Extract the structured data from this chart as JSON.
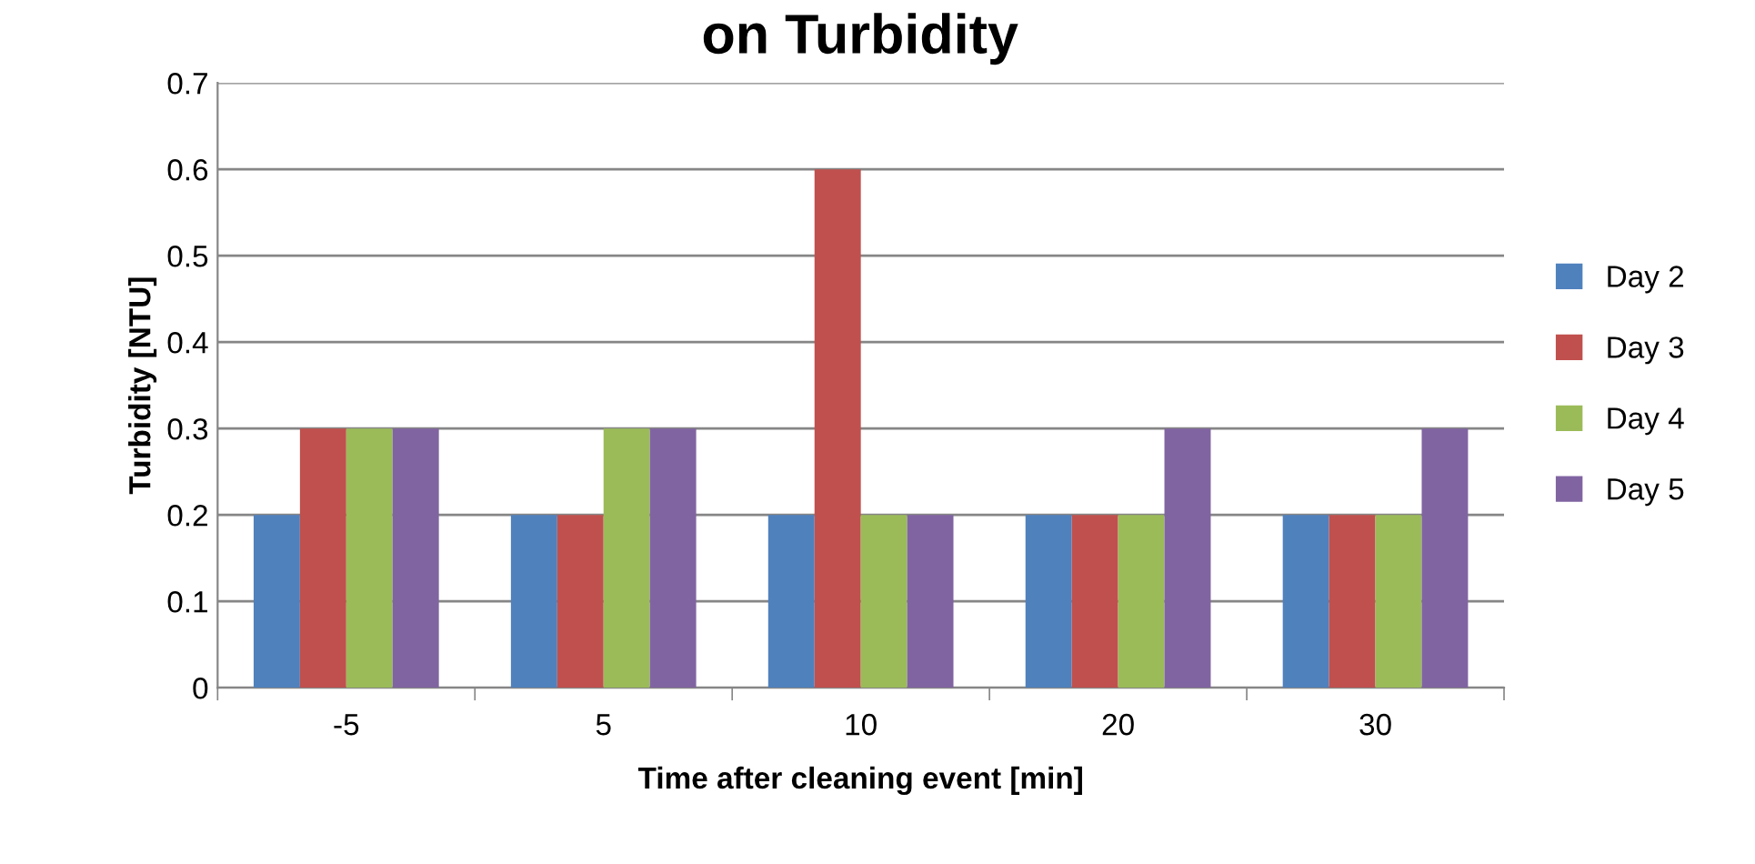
{
  "chart_data": {
    "type": "bar",
    "title": "on Turbidity",
    "xlabel": "Time after cleaning event [min]",
    "ylabel": "Turbidity [NTU]",
    "categories": [
      "-5",
      "5",
      "10",
      "20",
      "30"
    ],
    "series": [
      {
        "name": "Day 2",
        "color": "#4f81bd",
        "values": [
          0.2,
          0.2,
          0.2,
          0.2,
          0.2
        ]
      },
      {
        "name": "Day 3",
        "color": "#c0504d",
        "values": [
          0.3,
          0.2,
          0.6,
          0.2,
          0.2
        ]
      },
      {
        "name": "Day 4",
        "color": "#9bbb59",
        "values": [
          0.3,
          0.3,
          0.2,
          0.2,
          0.2
        ]
      },
      {
        "name": "Day 5",
        "color": "#8064a2",
        "values": [
          0.3,
          0.3,
          0.2,
          0.3,
          0.3
        ]
      }
    ],
    "ylim": [
      0,
      0.7
    ],
    "yticks": [
      0,
      0.1,
      0.2,
      0.3,
      0.4,
      0.5,
      0.6,
      0.7
    ],
    "grid": "y",
    "legend": "right"
  }
}
